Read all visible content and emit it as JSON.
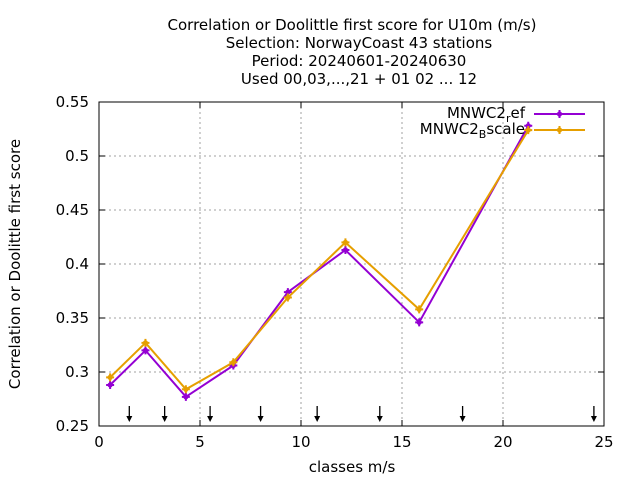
{
  "chart_data": {
    "type": "line",
    "title_lines": [
      "Correlation or Doolittle first score  for U10m (m/s)",
      "Selection: NorwayCoast     43 stations",
      "Period: 20240601-20240630",
      "Used 00,03,...,21 + 01 02 ... 12"
    ],
    "xlabel": "classes m/s",
    "ylabel": "Correlation or Doolittle first score",
    "xlim": [
      0,
      25
    ],
    "ylim": [
      0.25,
      0.55
    ],
    "xticks": [
      0,
      5,
      10,
      15,
      20,
      25
    ],
    "xtick_labels": [
      "0",
      "5",
      "10",
      "15",
      "20",
      "25"
    ],
    "yticks": [
      0.25,
      0.3,
      0.35,
      0.4,
      0.45,
      0.5,
      0.55
    ],
    "ytick_labels": [
      "0.25",
      "0.3",
      "0.35",
      "0.4",
      "0.45",
      "0.5",
      "0.55"
    ],
    "grid": true,
    "legend_position": "top-right",
    "series": [
      {
        "name": "MNWC2_ref",
        "legend_base": "MNWC2",
        "legend_sub": "r",
        "legend_rest": "ef",
        "color": "#9400d3",
        "x": [
          0.55,
          2.3,
          4.3,
          6.65,
          9.35,
          12.2,
          15.85,
          21.25
        ],
        "y": [
          0.288,
          0.32,
          0.277,
          0.306,
          0.374,
          0.413,
          0.346,
          0.528
        ]
      },
      {
        "name": "MNWC2_Bscale",
        "legend_base": "MNWC2",
        "legend_sub": "B",
        "legend_rest": "scale",
        "color": "#e69f00",
        "x": [
          0.55,
          2.3,
          4.3,
          6.65,
          9.35,
          12.2,
          15.85,
          21.25
        ],
        "y": [
          0.295,
          0.327,
          0.284,
          0.309,
          0.369,
          0.42,
          0.358,
          0.524
        ]
      }
    ],
    "class_boundaries": [
      1.5,
      3.25,
      5.5,
      8.0,
      10.8,
      13.9,
      18.0,
      24.5
    ]
  }
}
